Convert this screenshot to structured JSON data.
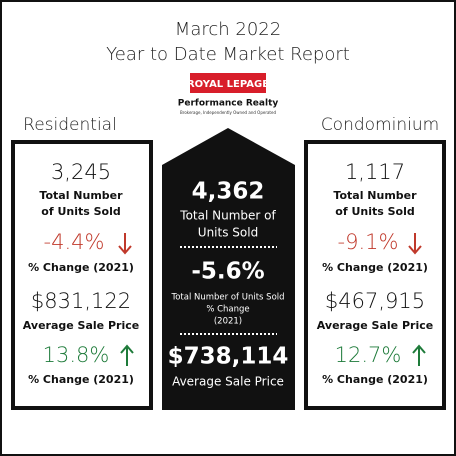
{
  "header": {
    "title": "March 2022",
    "subtitle": "Year to Date Market Report"
  },
  "logo": {
    "brand": "ROYAL LEPAGE",
    "office": "Performance Realty",
    "tagline": "Brokerage, Independently Owned and Operated"
  },
  "residential": {
    "heading": "Residential",
    "units": "3,245",
    "units_label": [
      "Total Number",
      "of Units Sold"
    ],
    "units_change": "-4.4%",
    "units_change_label": "% Change (2021)",
    "price": "$831,122",
    "price_label": "Average Sale Price",
    "price_change": "13.8%",
    "price_change_label": "% Change (2021)"
  },
  "total": {
    "units": "4,362",
    "units_label": [
      "Total Number of",
      "Units Sold"
    ],
    "units_change": "-5.6%",
    "units_change_label": [
      "Total Number of Units Sold",
      "% Change",
      "(2021)"
    ],
    "price": "$738,114",
    "price_label": "Average Sale Price"
  },
  "condominium": {
    "heading": "Condominium",
    "units": "1,117",
    "units_label": [
      "Total Number",
      "of Units Sold"
    ],
    "units_change": "-9.1%",
    "units_change_label": "% Change (2021)",
    "price": "$467,915",
    "price_label": "Average Sale Price",
    "price_change": "12.7%",
    "price_change_label": "% Change (2021)"
  }
}
